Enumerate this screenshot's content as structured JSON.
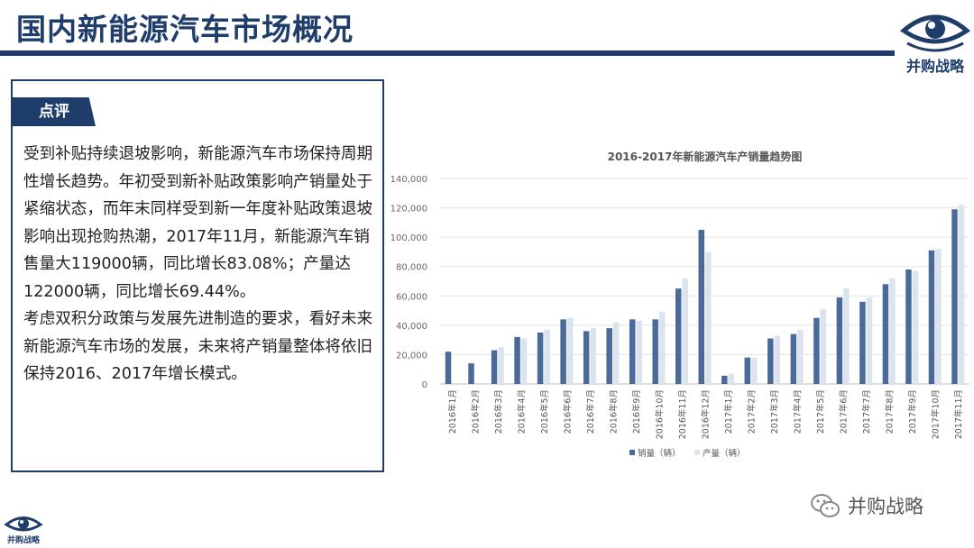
{
  "header": {
    "title": "国内新能源汽车市场概况",
    "brand": "并购战略"
  },
  "comment": {
    "tag": "点评",
    "paragraphs": [
      "受到补贴持续退坡影响，新能源汽车市场保持周期性增长趋势。年初受到新补贴政策影响产销量处于紧缩状态，而年末同样受到新一年度补贴政策退坡影响出现抢购热潮，2017年11月，新能源汽车销售量大119000辆，同比增长83.08%；产量达122000辆，同比增长69.44%。",
      "考虑双积分政策与发展先进制造的要求，看好未来新能源汽车市场的发展，未来将产销量整体将依旧保持2016、2017年增长模式。"
    ]
  },
  "watermark": {
    "text": "并购战略",
    "icon": "wechat-icon"
  },
  "footer": {
    "brand": "并购战略"
  },
  "colors": {
    "brand": "#1f3d6b",
    "sales": "#4a6b9a",
    "production": "#dbe3ef"
  },
  "chart_data": {
    "type": "bar",
    "title": "2016-2017年新能源汽车产销量趋势图",
    "categories": [
      "2016年1月",
      "2016年2月",
      "2016年3月",
      "2016年4月",
      "2016年5月",
      "2016年6月",
      "2016年7月",
      "2016年8月",
      "2016年9月",
      "2016年10月",
      "2016年11月",
      "2016年12月",
      "2017年1月",
      "2017年2月",
      "2017年3月",
      "2017年4月",
      "2017年5月",
      "2017年6月",
      "2017年7月",
      "2017年8月",
      "2017年9月",
      "2017年10月",
      "2017年11月"
    ],
    "series": [
      {
        "name": "销量（辆）",
        "values": [
          22000,
          14000,
          23000,
          32000,
          35000,
          44000,
          36000,
          38000,
          44000,
          44000,
          65000,
          105000,
          5600,
          18000,
          31000,
          34000,
          45000,
          59000,
          56000,
          68000,
          78000,
          91000,
          119000
        ]
      },
      {
        "name": "产量（辆）",
        "values": [
          0,
          0,
          25000,
          31000,
          37000,
          45000,
          38000,
          42000,
          43000,
          49000,
          72000,
          90000,
          7000,
          18000,
          33000,
          37000,
          51000,
          65000,
          59000,
          72000,
          77000,
          92000,
          122000
        ]
      }
    ],
    "ylim": [
      0,
      140000
    ],
    "yticks": [
      0,
      20000,
      40000,
      60000,
      80000,
      100000,
      120000,
      140000
    ],
    "ytick_labels": [
      "0",
      "20,000",
      "40,000",
      "60,000",
      "80,000",
      "100,000",
      "120,000",
      "140,000"
    ],
    "grid": true,
    "legend_position": "bottom"
  }
}
